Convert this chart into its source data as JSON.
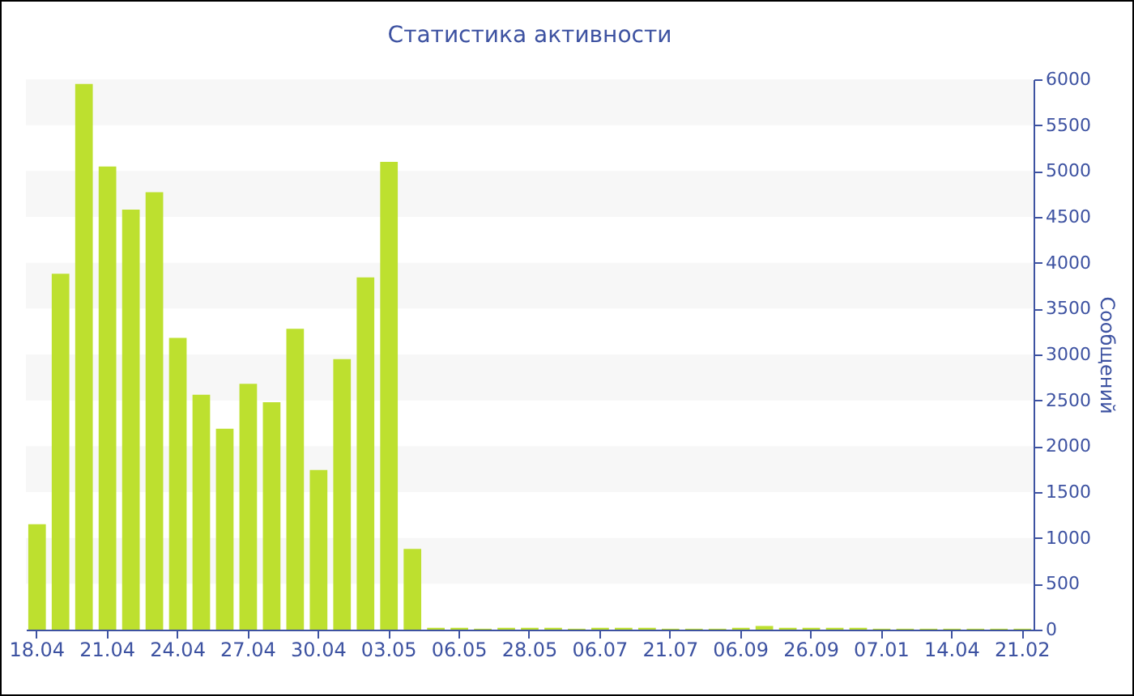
{
  "chart_data": {
    "type": "bar",
    "title": "Статистика активности",
    "ylabel": "Сообщений",
    "categories": [
      "18.04",
      null,
      null,
      "21.04",
      null,
      null,
      "24.04",
      null,
      null,
      "27.04",
      null,
      null,
      "30.04",
      null,
      null,
      "03.05",
      null,
      null,
      "06.05",
      null,
      null,
      "28.05",
      null,
      null,
      "06.07",
      null,
      null,
      "21.07",
      null,
      null,
      "06.09",
      null,
      null,
      "26.09",
      null,
      null,
      "07.01",
      null,
      null,
      "14.04",
      null,
      null,
      "21.02"
    ],
    "values": [
      1150,
      3880,
      5950,
      5050,
      4580,
      4770,
      3180,
      2560,
      2190,
      2680,
      2480,
      3280,
      1740,
      2950,
      3840,
      5100,
      880,
      20,
      20,
      10,
      20,
      20,
      20,
      10,
      20,
      20,
      20,
      10,
      10,
      10,
      20,
      40,
      20,
      20,
      20,
      20,
      10,
      10,
      10,
      10,
      10,
      10,
      10
    ],
    "color": "#bde02f",
    "ylim": [
      0,
      6000
    ],
    "yticks": [
      0,
      500,
      1000,
      1500,
      2000,
      2500,
      3000,
      3500,
      4000,
      4500,
      5000,
      5500,
      6000
    ],
    "bands": [
      {
        "axis": "y",
        "from": 500,
        "to": 1000,
        "color": "#f7f7f7"
      },
      {
        "axis": "y",
        "from": 1500,
        "to": 2000,
        "color": "#f7f7f7"
      },
      {
        "axis": "y",
        "from": 2500,
        "to": 3000,
        "color": "#f7f7f7"
      },
      {
        "axis": "y",
        "from": 3500,
        "to": 4000,
        "color": "#f7f7f7"
      },
      {
        "axis": "y",
        "from": 4500,
        "to": 5000,
        "color": "#f7f7f7"
      },
      {
        "axis": "y",
        "from": 5500,
        "to": 6000,
        "color": "#f7f7f7"
      }
    ]
  }
}
